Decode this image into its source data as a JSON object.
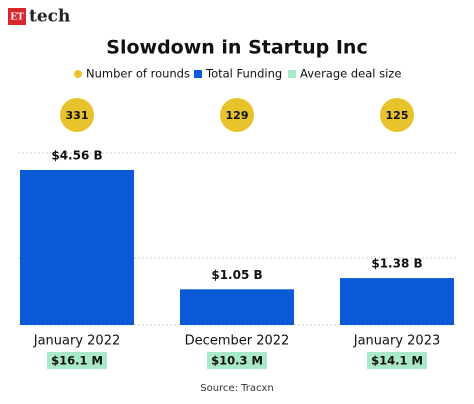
{
  "logo": {
    "mark": "ET",
    "text": "tech"
  },
  "chart_data": {
    "type": "bar",
    "title": "Slowdown in Startup Inc",
    "categories": [
      "January 2022",
      "December 2022",
      "January 2023"
    ],
    "series": [
      {
        "name": "Number of rounds",
        "color": "#e8c32b",
        "values": [
          331,
          129,
          125
        ]
      },
      {
        "name": "Total Funding",
        "color": "#0a5ad6",
        "values": [
          4.56,
          1.05,
          1.38
        ],
        "value_labels": [
          "$4.56 B",
          "$1.05 B",
          "$1.38 B"
        ]
      },
      {
        "name": "Average deal size",
        "color": "#a9e8c8",
        "values": [
          16.1,
          10.3,
          14.1
        ],
        "value_labels": [
          "$16.1 M",
          "$10.3 M",
          "$14.1 M"
        ]
      }
    ],
    "ylim": [
      0,
      5
    ],
    "source": "Source: Tracxn"
  }
}
